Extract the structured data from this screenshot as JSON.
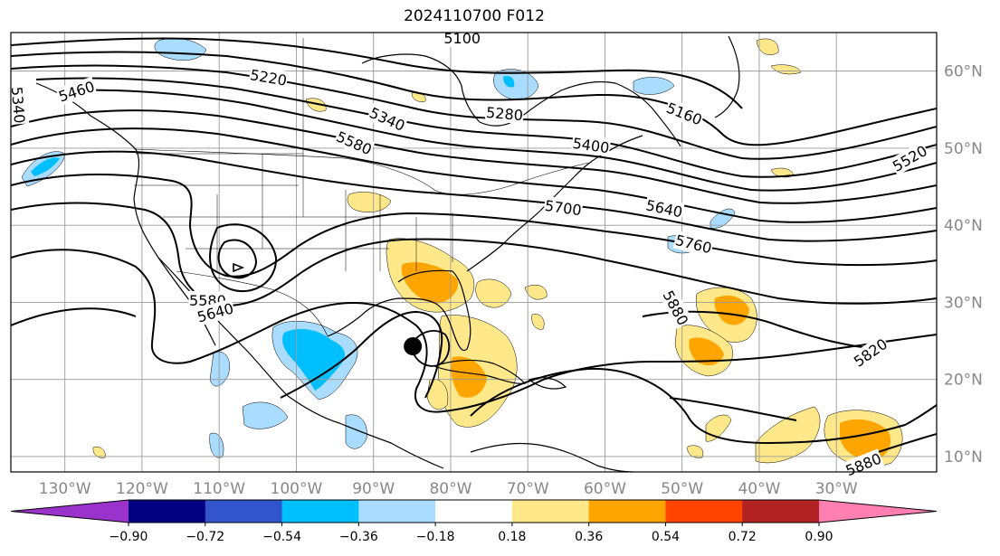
{
  "title": "2024110700 F012",
  "map": {
    "lon_labels": [
      "130°W",
      "120°W",
      "110°W",
      "100°W",
      "90°W",
      "80°W",
      "70°W",
      "60°W",
      "50°W",
      "40°W",
      "30°W"
    ],
    "lat_labels": [
      "60°N",
      "50°N",
      "40°N",
      "30°N",
      "20°N",
      "10°N"
    ],
    "lon_range": [
      -137,
      -17
    ],
    "lat_range": [
      8,
      65
    ],
    "gridlines": true
  },
  "contours": {
    "field": "geopotential height",
    "labels": [
      {
        "text": "5460",
        "lon": -128.5,
        "lat": 57.4,
        "rot": -18
      },
      {
        "text": "5340",
        "lon": -136,
        "lat": 55.6,
        "rot": 85
      },
      {
        "text": "5220",
        "lon": -103.6,
        "lat": 59.2,
        "rot": 10
      },
      {
        "text": "5100",
        "lon": -78.5,
        "lat": 64.3,
        "rot": 0
      },
      {
        "text": "5340",
        "lon": -88.2,
        "lat": 53.8,
        "rot": 24
      },
      {
        "text": "5280",
        "lon": -73,
        "lat": 54.5,
        "rot": 5
      },
      {
        "text": "5160",
        "lon": -49.7,
        "lat": 54.5,
        "rot": 22
      },
      {
        "text": "5580",
        "lon": -92.5,
        "lat": 50.7,
        "rot": 24
      },
      {
        "text": "5400",
        "lon": -61.8,
        "lat": 50.4,
        "rot": 8
      },
      {
        "text": "5520",
        "lon": -20.5,
        "lat": 48.7,
        "rot": -30
      },
      {
        "text": "5640",
        "lon": -52.3,
        "lat": 42.2,
        "rot": 12
      },
      {
        "text": "5700",
        "lon": -65.4,
        "lat": 42.3,
        "rot": 8
      },
      {
        "text": "5760",
        "lon": -48.5,
        "lat": 37.6,
        "rot": 14
      },
      {
        "text": "5580",
        "lon": -111.5,
        "lat": 30.3,
        "rot": 0
      },
      {
        "text": "5640",
        "lon": -110.5,
        "lat": 28.7,
        "rot": -15
      },
      {
        "text": "5880",
        "lon": -50.8,
        "lat": 29.3,
        "rot": 62
      },
      {
        "text": "5820",
        "lon": -25.6,
        "lat": 23.5,
        "rot": -35
      },
      {
        "text": "5880",
        "lon": -26.5,
        "lat": 9.0,
        "rot": -22
      }
    ]
  },
  "marker": {
    "label": "",
    "lon": -84.9,
    "lat": 24.3
  },
  "colorbar": {
    "ticks": [
      "−0.90",
      "−0.72",
      "−0.54",
      "−0.36",
      "−0.18",
      "0.18",
      "0.36",
      "0.54",
      "0.72",
      "0.90"
    ],
    "colors": [
      "#9933cc",
      "#000080",
      "#3355cc",
      "#00bfff",
      "#a9dcff",
      "#ffffff",
      "#ffe88a",
      "#ffa500",
      "#ff4400",
      "#b22222",
      "#ff80b0"
    ],
    "extend": "both"
  }
}
